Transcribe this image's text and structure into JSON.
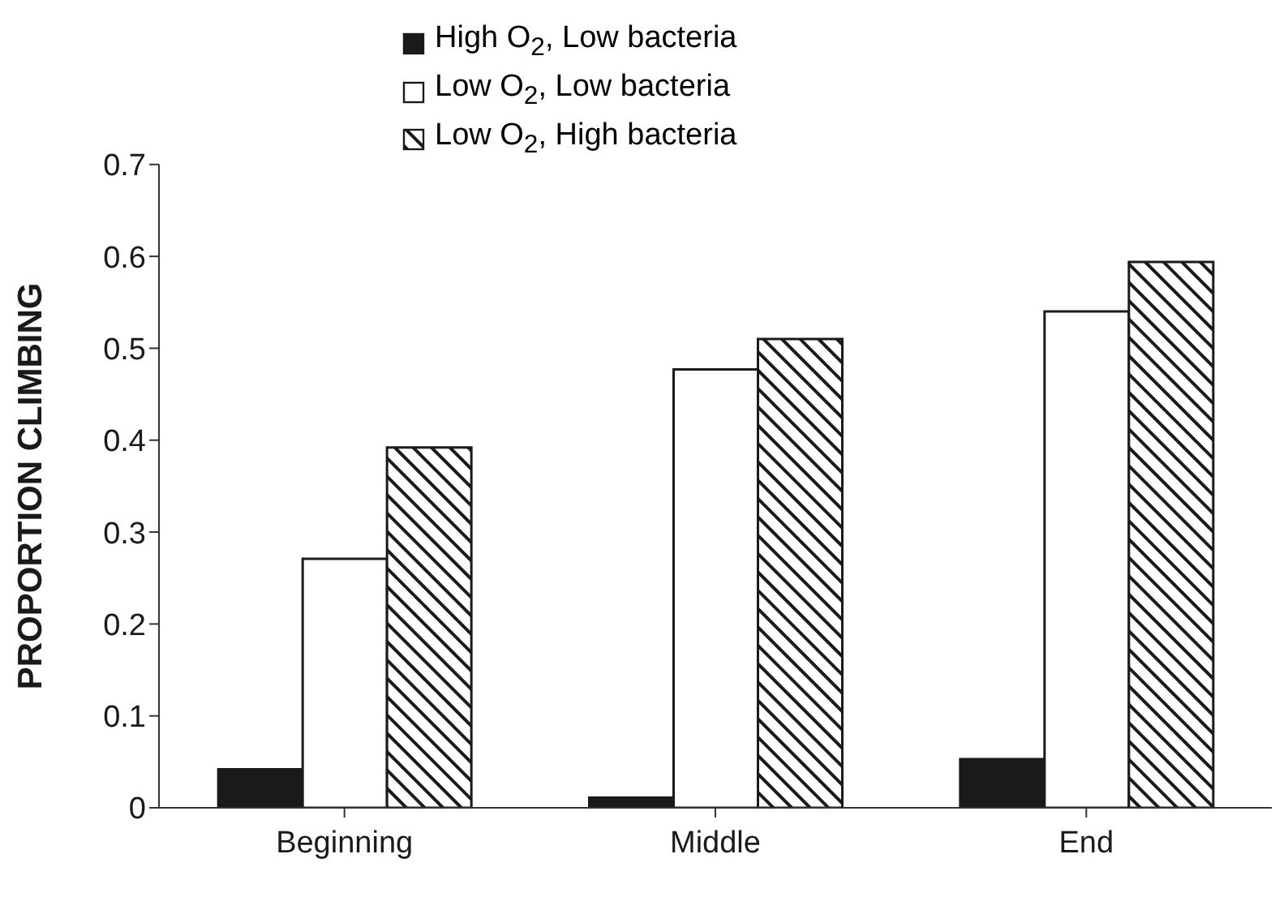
{
  "chart_data": {
    "type": "bar",
    "ylabel": "PROPORTION CLIMBING",
    "categories": [
      "Beginning",
      "Middle",
      "End"
    ],
    "series": [
      {
        "name": "High O$_{2}$, Low bacteria",
        "color": "#1a1a1a",
        "values": [
          0.042,
          0.011,
          0.053
        ]
      },
      {
        "name": "Low O$_{2}$,  Low bacteria",
        "color": "#ffffff",
        "values": [
          0.271,
          0.477,
          0.54
        ]
      },
      {
        "name": "Low O$_{2}$,  High bacteria",
        "color": "#1a1a1a",
        "values": [
          0.392,
          0.51,
          0.594
        ]
      }
    ],
    "ylim": [
      0,
      0.7
    ],
    "yticks": [
      0,
      0.1,
      0.2,
      0.3,
      0.4,
      0.5,
      0.6,
      0.7
    ],
    "grid": false,
    "legend": "top"
  }
}
